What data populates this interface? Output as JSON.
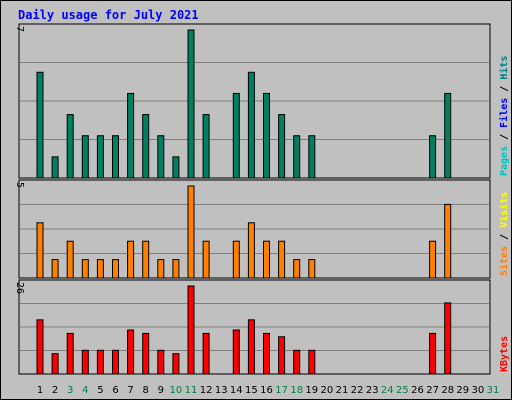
{
  "chart_data": {
    "type": "bar",
    "title": "Daily usage for July 2021",
    "categories": [
      "1",
      "2",
      "3",
      "4",
      "5",
      "6",
      "7",
      "8",
      "9",
      "10",
      "11",
      "12",
      "13",
      "14",
      "15",
      "16",
      "17",
      "18",
      "19",
      "20",
      "21",
      "22",
      "23",
      "24",
      "25",
      "26",
      "27",
      "28",
      "29",
      "30",
      "31"
    ],
    "weekend_days": [
      "3",
      "4",
      "10",
      "11",
      "17",
      "18",
      "24",
      "25",
      "31"
    ],
    "panels": [
      {
        "ymax": 7,
        "ymax_label": "7",
        "side_labels": [
          {
            "text": "Pages",
            "color": "#00c0c0"
          },
          {
            "text": " / ",
            "color": "#000000"
          },
          {
            "text": "Files",
            "color": "#0000ff"
          },
          {
            "text": " / ",
            "color": "#000000"
          },
          {
            "text": "Hits",
            "color": "#008080"
          }
        ],
        "series": [
          {
            "key": "hits",
            "color": "#008060",
            "values": [
              5,
              1,
              3,
              2,
              2,
              2,
              4,
              3,
              2,
              1,
              7,
              3,
              0,
              4,
              5,
              4,
              3,
              2,
              2,
              0,
              0,
              0,
              0,
              0,
              0,
              0,
              2,
              4,
              0,
              0,
              0
            ]
          }
        ]
      },
      {
        "ymax": 5,
        "ymax_label": "5",
        "side_labels": [
          {
            "text": "Sites",
            "color": "#ff8000"
          },
          {
            "text": " / ",
            "color": "#000000"
          },
          {
            "text": "Visits",
            "color": "#ffff00"
          }
        ],
        "series": [
          {
            "key": "visits",
            "color": "#ff8000",
            "values": [
              3,
              1,
              2,
              1,
              1,
              1,
              2,
              2,
              1,
              1,
              5,
              2,
              0,
              2,
              3,
              2,
              2,
              1,
              1,
              0,
              0,
              0,
              0,
              0,
              0,
              0,
              2,
              4,
              0,
              0,
              0
            ]
          }
        ]
      },
      {
        "ymax": 26,
        "ymax_label": "26",
        "side_labels": [
          {
            "text": "KBytes",
            "color": "#ff0000"
          }
        ],
        "series": [
          {
            "key": "kbytes",
            "color": "#ff0000",
            "values": [
              16,
              6,
              12,
              7,
              7,
              7,
              13,
              12,
              7,
              6,
              26,
              12,
              0,
              13,
              16,
              12,
              11,
              7,
              7,
              0,
              0,
              0,
              0,
              0,
              0,
              0,
              12,
              21,
              0,
              0,
              0
            ]
          }
        ]
      }
    ],
    "grid": true
  }
}
